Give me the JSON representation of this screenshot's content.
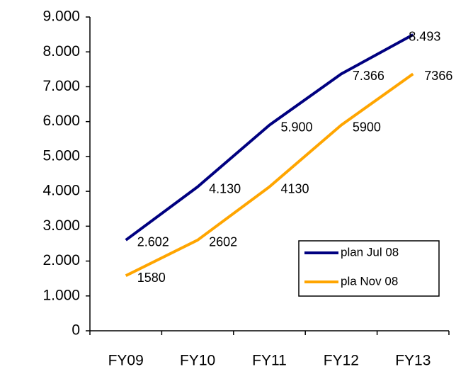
{
  "chart_data": {
    "type": "line",
    "categories": [
      "FY09",
      "FY10",
      "FY11",
      "FY12",
      "FY13"
    ],
    "series": [
      {
        "name": "plan Jul 08",
        "color": "#000080",
        "values": [
          2602,
          4130,
          5900,
          7366,
          8493
        ],
        "value_labels": [
          "2.602",
          "4.130",
          "5.900",
          "7.366",
          "8.493"
        ]
      },
      {
        "name": "pla Nov 08",
        "color": "#ffa500",
        "values": [
          1580,
          2602,
          4130,
          5900,
          7366
        ]
      }
    ],
    "ylim": [
      0,
      9000
    ],
    "yticks": [
      0,
      {
        "value": 1000,
        "label": "1.000"
      },
      {
        "value": 2000,
        "label": "2.000"
      },
      {
        "value": 3000,
        "label": "3.000"
      },
      {
        "value": 4000,
        "label": "4.000"
      },
      {
        "value": 5000,
        "label": "5.000"
      },
      {
        "value": 6000,
        "label": "6.000"
      },
      {
        "value": 7000,
        "label": "7.000"
      },
      {
        "value": 8000,
        "label": "8.000"
      },
      {
        "value": 9000,
        "label": "9.000"
      }
    ],
    "grid": false,
    "legend": "lower right"
  }
}
